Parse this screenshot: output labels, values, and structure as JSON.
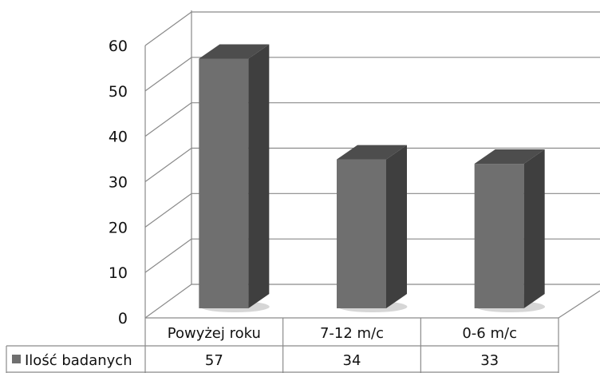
{
  "chart_data": {
    "type": "bar",
    "style": "3d-column-with-data-table",
    "categories": [
      "Powyżej roku",
      "7-12 m/c",
      "0-6 m/c"
    ],
    "series": [
      {
        "name": "Ilość badanych",
        "values": [
          57,
          34,
          33
        ]
      }
    ],
    "ylim": [
      0,
      60
    ],
    "yticks": [
      "0",
      "10",
      "20",
      "30",
      "40",
      "50",
      "60"
    ],
    "grid": true,
    "legend": "data-table-left",
    "title": "",
    "xlabel": "",
    "ylabel": "",
    "colors": {
      "bar_front": "#6f6f6f",
      "bar_side": "#3f3f3f",
      "bar_top": "#4d4d4d",
      "gridline": "#8a8a8a",
      "table_border": "#8a8a8a",
      "legend_key": "#6f6f6f"
    }
  }
}
